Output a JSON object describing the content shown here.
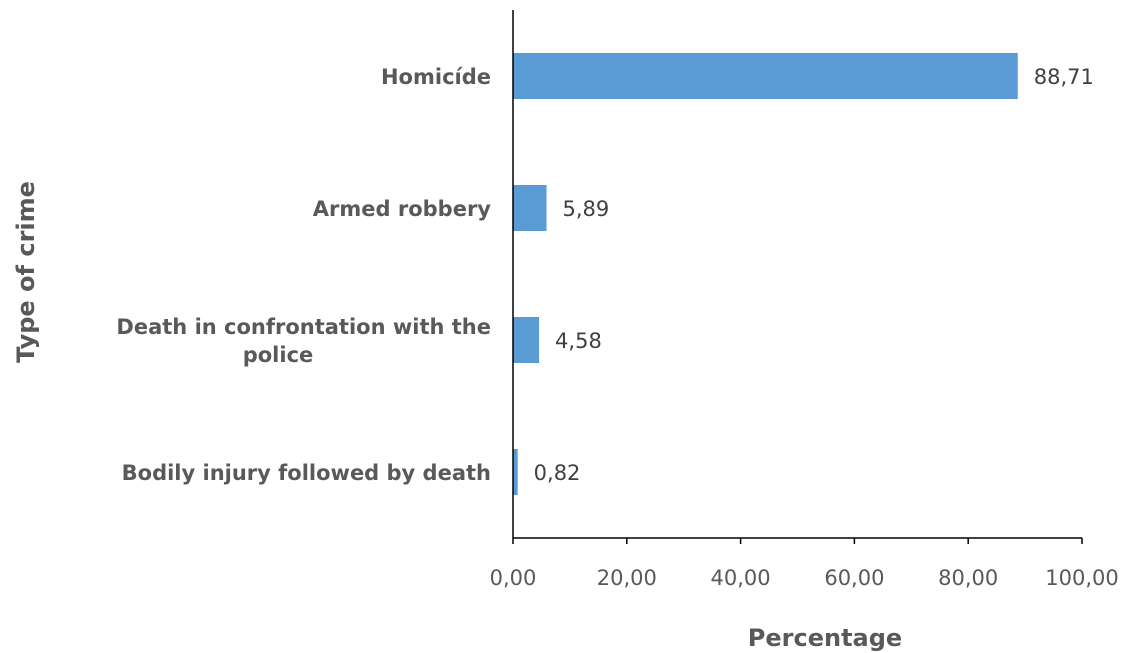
{
  "chart_data": {
    "type": "bar",
    "orientation": "horizontal",
    "categories": [
      [
        "Homicíde"
      ],
      [
        "Armed robbery"
      ],
      [
        "Death in confrontation with the",
        "police"
      ],
      [
        "Bodily injury followed by death"
      ]
    ],
    "values": [
      88.71,
      5.89,
      4.58,
      0.82
    ],
    "value_labels": [
      "88,71",
      "5,89",
      "4,58",
      "0,82"
    ],
    "xlim": [
      0,
      100
    ],
    "x_ticks": [
      0,
      20,
      40,
      60,
      80,
      100
    ],
    "x_tick_labels": [
      "0,00",
      "20,00",
      "40,00",
      "60,00",
      "80,00",
      "100,00"
    ],
    "xlabel": "Percentage",
    "ylabel": "Type of crime",
    "title": "",
    "grid": false,
    "legend": "none",
    "bar_color": "#5B9BD5"
  }
}
